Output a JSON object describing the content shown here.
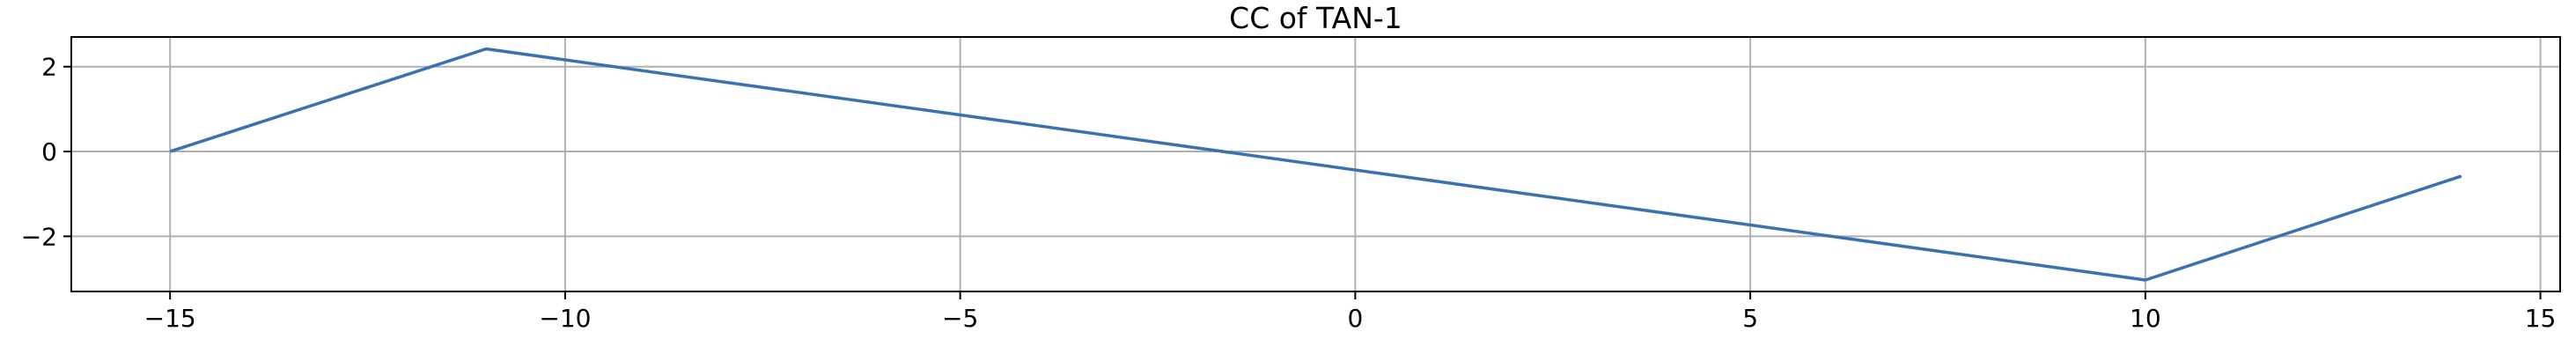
{
  "chart_data": {
    "type": "line",
    "title": "CC of TAN-1",
    "xlabel": "",
    "ylabel": "",
    "xlim": [
      -16.25,
      15.25
    ],
    "ylim": [
      -3.3,
      2.7
    ],
    "xticks": [
      -15,
      -10,
      -5,
      0,
      5,
      10,
      15
    ],
    "yticks": [
      -2,
      0,
      2
    ],
    "xtick_labels": [
      "−15",
      "−10",
      "−5",
      "0",
      "5",
      "10",
      "15"
    ],
    "ytick_labels": [
      "−2",
      "0",
      "2"
    ],
    "grid": true,
    "series": [
      {
        "name": "CC",
        "color": "#3a72b0",
        "x": [
          -15,
          -11,
          10,
          14
        ],
        "y": [
          0.0,
          2.42,
          -3.03,
          -0.58
        ]
      }
    ]
  }
}
